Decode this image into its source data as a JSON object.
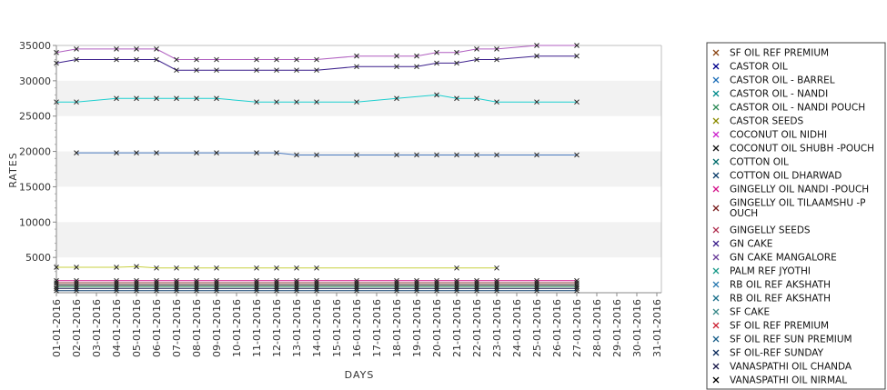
{
  "chart_data": {
    "type": "line",
    "title": "",
    "xlabel": "DAYS",
    "ylabel": "RATES",
    "ylim": [
      0,
      35000
    ],
    "yticks": [
      5000,
      10000,
      15000,
      20000,
      25000,
      30000,
      35000
    ],
    "ytick_labels": [
      "5000",
      "10000",
      "15000",
      "20000",
      "25000",
      "30000",
      "35000"
    ],
    "grid": "alternating horizontal bands",
    "legend_position": "right",
    "x": [
      "01-01-2016",
      "02-01-2016",
      "03-01-2016",
      "04-01-2016",
      "05-01-2016",
      "06-01-2016",
      "07-01-2016",
      "08-01-2016",
      "09-01-2016",
      "10-01-2016",
      "11-01-2016",
      "12-01-2016",
      "13-01-2016",
      "14-01-2016",
      "15-01-2016",
      "16-01-2016",
      "17-01-2016",
      "18-01-2016",
      "19-01-2016",
      "20-01-2016",
      "21-01-2016",
      "22-01-2016",
      "23-01-2016",
      "24-01-2016",
      "25-01-2016",
      "26-01-2016",
      "27-01-2016",
      "28-01-2016",
      "29-01-2016",
      "30-01-2016",
      "31-01-2016"
    ],
    "legend": [
      {
        "label": " SF OIL REF PREMIUM",
        "color": "#8b4513"
      },
      {
        "label": "CASTOR OIL",
        "color": "#00008b"
      },
      {
        "label": "CASTOR OIL - BARREL",
        "color": "#1e6fb8"
      },
      {
        "label": "CASTOR OIL - NANDI",
        "color": "#008b8b"
      },
      {
        "label": "CASTOR OIL - NANDI POUCH",
        "color": "#2e8b57"
      },
      {
        "label": "CASTOR SEEDS",
        "color": "#8b8b00"
      },
      {
        "label": "COCONUT OIL NIDHI",
        "color": "#cc22cc"
      },
      {
        "label": "COCONUT OIL SHUBH -POUCH",
        "color": "#111111"
      },
      {
        "label": "COTTON OIL",
        "color": "#006b6b"
      },
      {
        "label": "COTTON OIL DHARWAD",
        "color": "#0b3d6b"
      },
      {
        "label": "GINGELLY OIL NANDI -POUCH",
        "color": "#d4148a"
      },
      {
        "label": "GINGELLY OIL TILAAMSHU -P OUCH",
        "color": "#7a1f1f"
      },
      {
        "label": "GINGELLY SEEDS",
        "color": "#b03050"
      },
      {
        "label": "GN CAKE",
        "color": "#3b1f8b"
      },
      {
        "label": "GN CAKE MANGALORE",
        "color": "#6a3d9a"
      },
      {
        "label": "PALM REF JYOTHI",
        "color": "#1a9a8a"
      },
      {
        "label": "RB OIL REF  AKSHATH",
        "color": "#2a7ab0"
      },
      {
        "label": "RB OIL REF AKSHATH",
        "color": "#1a6f8a"
      },
      {
        "label": "SF CAKE",
        "color": "#3a8a8a"
      },
      {
        "label": "SF OIL REF PREMIUM",
        "color": "#cc2233"
      },
      {
        "label": "SF OIL REF SUN PREMIUM",
        "color": "#1a5f8a"
      },
      {
        "label": "SF OIL-REF SUNDAY",
        "color": "#0a2a5a"
      },
      {
        "label": "VANASPATHI OIL CHANDA",
        "color": "#1a1a4a"
      },
      {
        "label": "VANASPATHI OIL NIRMAL",
        "color": "#000000"
      }
    ],
    "series": [
      {
        "color": "#b05fc0",
        "points": [
          [
            1,
            34000
          ],
          [
            2,
            34500
          ],
          [
            4,
            34500
          ],
          [
            5,
            34500
          ],
          [
            6,
            34500
          ],
          [
            7,
            33000
          ],
          [
            8,
            33000
          ],
          [
            9,
            33000
          ],
          [
            11,
            33000
          ],
          [
            12,
            33000
          ],
          [
            13,
            33000
          ],
          [
            14,
            33000
          ],
          [
            16,
            33500
          ],
          [
            18,
            33500
          ],
          [
            19,
            33500
          ],
          [
            20,
            34000
          ],
          [
            21,
            34000
          ],
          [
            22,
            34500
          ],
          [
            23,
            34500
          ],
          [
            25,
            35000
          ],
          [
            27,
            35000
          ]
        ]
      },
      {
        "color": "#3b1f8b",
        "points": [
          [
            1,
            32500
          ],
          [
            2,
            33000
          ],
          [
            4,
            33000
          ],
          [
            5,
            33000
          ],
          [
            6,
            33000
          ],
          [
            7,
            31500
          ],
          [
            8,
            31500
          ],
          [
            9,
            31500
          ],
          [
            11,
            31500
          ],
          [
            12,
            31500
          ],
          [
            13,
            31500
          ],
          [
            14,
            31500
          ],
          [
            16,
            32000
          ],
          [
            18,
            32000
          ],
          [
            19,
            32000
          ],
          [
            20,
            32500
          ],
          [
            21,
            32500
          ],
          [
            22,
            33000
          ],
          [
            23,
            33000
          ],
          [
            25,
            33500
          ],
          [
            27,
            33500
          ]
        ]
      },
      {
        "color": "#1ccfcf",
        "points": [
          [
            1,
            27000
          ],
          [
            2,
            27000
          ],
          [
            4,
            27500
          ],
          [
            5,
            27500
          ],
          [
            6,
            27500
          ],
          [
            7,
            27500
          ],
          [
            8,
            27500
          ],
          [
            9,
            27500
          ],
          [
            11,
            27000
          ],
          [
            12,
            27000
          ],
          [
            13,
            27000
          ],
          [
            14,
            27000
          ],
          [
            16,
            27000
          ],
          [
            18,
            27500
          ],
          [
            20,
            28000
          ],
          [
            21,
            27500
          ],
          [
            22,
            27500
          ],
          [
            23,
            27000
          ],
          [
            25,
            27000
          ],
          [
            27,
            27000
          ]
        ]
      },
      {
        "color": "#4a7ac0",
        "points": [
          [
            2,
            19800
          ],
          [
            4,
            19800
          ],
          [
            5,
            19800
          ],
          [
            6,
            19800
          ],
          [
            8,
            19800
          ],
          [
            9,
            19800
          ],
          [
            11,
            19800
          ],
          [
            12,
            19800
          ],
          [
            13,
            19500
          ],
          [
            14,
            19500
          ],
          [
            16,
            19500
          ],
          [
            18,
            19500
          ],
          [
            19,
            19500
          ],
          [
            20,
            19500
          ],
          [
            21,
            19500
          ],
          [
            22,
            19500
          ],
          [
            23,
            19500
          ],
          [
            25,
            19500
          ],
          [
            27,
            19500
          ]
        ]
      },
      {
        "color": "#c8d040",
        "points": [
          [
            1,
            3600
          ],
          [
            2,
            3600
          ],
          [
            4,
            3600
          ],
          [
            5,
            3700
          ],
          [
            6,
            3500
          ],
          [
            7,
            3500
          ],
          [
            8,
            3500
          ],
          [
            9,
            3500
          ],
          [
            11,
            3500
          ],
          [
            12,
            3500
          ],
          [
            13,
            3500
          ],
          [
            14,
            3500
          ],
          [
            21,
            3500
          ],
          [
            23,
            3500
          ]
        ]
      },
      {
        "color": "#d4148a",
        "points": [
          [
            1,
            1700
          ],
          [
            2,
            1700
          ],
          [
            4,
            1700
          ],
          [
            5,
            1700
          ],
          [
            6,
            1700
          ],
          [
            7,
            1700
          ],
          [
            8,
            1700
          ],
          [
            9,
            1700
          ],
          [
            11,
            1700
          ],
          [
            12,
            1700
          ],
          [
            13,
            1700
          ],
          [
            14,
            1700
          ],
          [
            16,
            1700
          ],
          [
            18,
            1700
          ],
          [
            19,
            1700
          ],
          [
            20,
            1700
          ],
          [
            21,
            1700
          ],
          [
            22,
            1700
          ],
          [
            23,
            1700
          ],
          [
            25,
            1700
          ],
          [
            27,
            1700
          ]
        ]
      },
      {
        "color": "#7a1f1f",
        "points": [
          [
            1,
            1400
          ],
          [
            2,
            1400
          ],
          [
            4,
            1400
          ],
          [
            5,
            1400
          ],
          [
            6,
            1400
          ],
          [
            7,
            1400
          ],
          [
            8,
            1400
          ],
          [
            9,
            1400
          ],
          [
            11,
            1400
          ],
          [
            12,
            1400
          ],
          [
            13,
            1400
          ],
          [
            14,
            1400
          ],
          [
            16,
            1400
          ],
          [
            18,
            1400
          ],
          [
            19,
            1400
          ],
          [
            20,
            1400
          ],
          [
            21,
            1400
          ],
          [
            22,
            1400
          ],
          [
            23,
            1400
          ],
          [
            25,
            1400
          ],
          [
            27,
            1400
          ]
        ]
      },
      {
        "color": "#111111",
        "points": [
          [
            1,
            1100
          ],
          [
            2,
            1100
          ],
          [
            4,
            1100
          ],
          [
            5,
            1100
          ],
          [
            6,
            1100
          ],
          [
            7,
            1100
          ],
          [
            8,
            1100
          ],
          [
            9,
            1100
          ],
          [
            11,
            1100
          ],
          [
            12,
            1100
          ],
          [
            13,
            1100
          ],
          [
            14,
            1100
          ],
          [
            16,
            1100
          ],
          [
            18,
            1100
          ],
          [
            19,
            1100
          ],
          [
            20,
            1100
          ],
          [
            21,
            1100
          ],
          [
            22,
            1100
          ],
          [
            23,
            1100
          ],
          [
            25,
            1100
          ],
          [
            27,
            1100
          ]
        ]
      },
      {
        "color": "#2e8b57",
        "points": [
          [
            1,
            850
          ],
          [
            2,
            850
          ],
          [
            4,
            850
          ],
          [
            5,
            850
          ],
          [
            6,
            850
          ],
          [
            7,
            850
          ],
          [
            8,
            850
          ],
          [
            9,
            850
          ],
          [
            11,
            850
          ],
          [
            12,
            850
          ],
          [
            13,
            850
          ],
          [
            14,
            850
          ],
          [
            16,
            850
          ],
          [
            18,
            850
          ],
          [
            19,
            850
          ],
          [
            20,
            850
          ],
          [
            21,
            850
          ],
          [
            22,
            850
          ],
          [
            23,
            850
          ],
          [
            25,
            850
          ],
          [
            27,
            850
          ]
        ]
      },
      {
        "color": "#1a1a4a",
        "points": [
          [
            1,
            600
          ],
          [
            2,
            600
          ],
          [
            4,
            600
          ],
          [
            5,
            600
          ],
          [
            6,
            600
          ],
          [
            7,
            600
          ],
          [
            8,
            600
          ],
          [
            9,
            600
          ],
          [
            11,
            600
          ],
          [
            12,
            600
          ],
          [
            13,
            600
          ],
          [
            14,
            600
          ],
          [
            16,
            600
          ],
          [
            18,
            600
          ],
          [
            19,
            600
          ],
          [
            20,
            600
          ],
          [
            21,
            600
          ],
          [
            22,
            600
          ],
          [
            23,
            600
          ],
          [
            25,
            600
          ],
          [
            27,
            600
          ]
        ]
      },
      {
        "color": "#0b3d6b",
        "points": [
          [
            1,
            300
          ],
          [
            2,
            300
          ],
          [
            4,
            300
          ],
          [
            5,
            300
          ],
          [
            6,
            300
          ],
          [
            7,
            300
          ],
          [
            8,
            300
          ],
          [
            9,
            300
          ],
          [
            11,
            300
          ],
          [
            12,
            300
          ],
          [
            13,
            300
          ],
          [
            14,
            300
          ],
          [
            16,
            300
          ],
          [
            18,
            300
          ],
          [
            19,
            300
          ],
          [
            20,
            300
          ],
          [
            21,
            300
          ],
          [
            22,
            300
          ],
          [
            23,
            300
          ],
          [
            25,
            300
          ],
          [
            27,
            300
          ]
        ]
      }
    ]
  }
}
